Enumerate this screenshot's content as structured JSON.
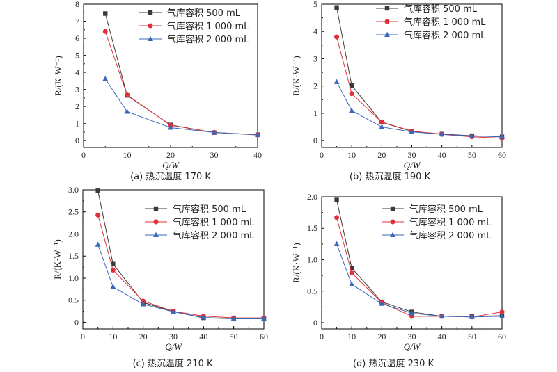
{
  "colors": {
    "series": [
      "#3a3a3a",
      "#e0303a",
      "#3a68b8"
    ],
    "axis": "#000000"
  },
  "legend_entries": [
    "气库容积 500 mL",
    "气库容积 1 000 mL",
    "气库容积 2 000 mL"
  ],
  "chart_data": [
    {
      "type": "line",
      "caption": "(a) 热沉温度 170 K",
      "xlabel": "Q/W",
      "ylabel": "R/(K·W⁻¹)",
      "xlim": [
        0,
        40
      ],
      "ylim": [
        -0.4,
        8
      ],
      "xticks": [
        0,
        10,
        20,
        30,
        40
      ],
      "yticks": [
        0,
        1,
        2,
        3,
        4,
        5,
        6,
        7,
        8
      ],
      "x": [
        5,
        10,
        20,
        30,
        40
      ],
      "legend_position": "top-right",
      "grid": false,
      "series": [
        {
          "name": "气库容积 500 mL",
          "marker": "square",
          "values": [
            7.45,
            2.65,
            0.92,
            0.47,
            0.35
          ]
        },
        {
          "name": "气库容积 1 000 mL",
          "marker": "circle",
          "values": [
            6.4,
            2.68,
            0.9,
            0.48,
            0.33
          ]
        },
        {
          "name": "气库容积 2 000 mL",
          "marker": "triangle",
          "values": [
            3.62,
            1.7,
            0.76,
            0.48,
            0.34
          ]
        }
      ]
    },
    {
      "type": "line",
      "caption": "(b) 热沉温度 190 K",
      "xlabel": "Q/W",
      "ylabel": "R/(K·W⁻¹)",
      "xlim": [
        0,
        60
      ],
      "ylim": [
        -0.25,
        5
      ],
      "xticks": [
        0,
        10,
        20,
        30,
        40,
        50,
        60
      ],
      "yticks": [
        0,
        1,
        2,
        3,
        4,
        5
      ],
      "x": [
        5,
        10,
        20,
        30,
        40,
        50,
        60
      ],
      "legend_position": "top-right",
      "grid": false,
      "series": [
        {
          "name": "气库容积 500 mL",
          "marker": "square",
          "values": [
            4.88,
            2.02,
            0.67,
            0.34,
            0.24,
            0.18,
            0.14
          ]
        },
        {
          "name": "气库容积 1 000 mL",
          "marker": "circle",
          "values": [
            3.8,
            1.72,
            0.68,
            0.35,
            0.23,
            0.14,
            0.09
          ]
        },
        {
          "name": "气库容积 2 000 mL",
          "marker": "triangle",
          "values": [
            2.15,
            1.1,
            0.5,
            0.32,
            0.23,
            0.17,
            0.14
          ]
        }
      ]
    },
    {
      "type": "line",
      "caption": "(c) 热沉温度 210 K",
      "xlabel": "Q/W",
      "ylabel": "R/(K·W⁻¹)",
      "xlim": [
        0,
        60
      ],
      "ylim": [
        -0.15,
        3
      ],
      "xticks": [
        0,
        10,
        20,
        30,
        40,
        50,
        60
      ],
      "yticks": [
        0,
        0.5,
        1.0,
        1.5,
        2.0,
        2.5,
        3.0
      ],
      "ytick_labels": [
        "0",
        "0.5",
        "1.0",
        "1.5",
        "2.0",
        "2.5",
        "3.0"
      ],
      "x": [
        5,
        10,
        20,
        30,
        40,
        50,
        60
      ],
      "legend_position": "top-right",
      "grid": false,
      "series": [
        {
          "name": "气库容积 500 mL",
          "marker": "square",
          "values": [
            2.98,
            1.32,
            0.45,
            0.24,
            0.1,
            0.08,
            0.08
          ]
        },
        {
          "name": "气库容积 1 000 mL",
          "marker": "circle",
          "values": [
            2.43,
            1.18,
            0.48,
            0.25,
            0.14,
            0.1,
            0.1
          ]
        },
        {
          "name": "气库容积 2 000 mL",
          "marker": "triangle",
          "values": [
            1.76,
            0.8,
            0.41,
            0.24,
            0.11,
            0.08,
            0.08
          ]
        }
      ]
    },
    {
      "type": "line",
      "caption": "(d) 热沉温度 230 K",
      "xlabel": "Q/W",
      "ylabel": "R/(K·W⁻¹)",
      "xlim": [
        0,
        60
      ],
      "ylim": [
        -0.1,
        2
      ],
      "xticks": [
        0,
        10,
        20,
        30,
        40,
        50,
        60
      ],
      "yticks": [
        0,
        0.5,
        1.0,
        1.5,
        2.0
      ],
      "ytick_labels": [
        "0",
        "0.5",
        "1.0",
        "1.5",
        "2.0"
      ],
      "x": [
        5,
        10,
        20,
        30,
        40,
        50,
        60
      ],
      "legend_position": "top-right",
      "grid": false,
      "series": [
        {
          "name": "气库容积 500 mL",
          "marker": "square",
          "values": [
            1.95,
            0.87,
            0.33,
            0.17,
            0.1,
            0.1,
            0.11
          ]
        },
        {
          "name": "气库容积 1 000 mL",
          "marker": "circle",
          "values": [
            1.67,
            0.79,
            0.32,
            0.1,
            0.1,
            0.09,
            0.17
          ]
        },
        {
          "name": "气库容积 2 000 mL",
          "marker": "triangle",
          "values": [
            1.25,
            0.61,
            0.3,
            0.15,
            0.1,
            0.09,
            0.1
          ]
        }
      ]
    }
  ]
}
